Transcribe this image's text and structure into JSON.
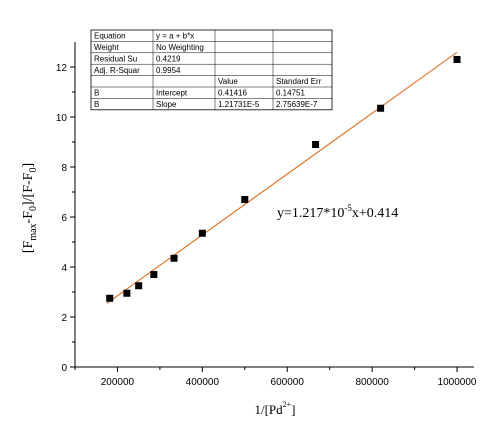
{
  "chart_data": {
    "type": "scatter",
    "x_ticks": [
      "200000",
      "400000",
      "600000",
      "800000",
      "1000000"
    ],
    "y_ticks": [
      "0",
      "2",
      "4",
      "6",
      "8",
      "10",
      "12"
    ],
    "xlim": [
      100000,
      1040000
    ],
    "ylim": [
      0,
      13
    ],
    "grid": false,
    "xlabel": {
      "main": "1/[Pd",
      "sup": "2+",
      "close": "]"
    },
    "ylabel": {
      "p1": "[F",
      "s1": "max",
      "p2": "-F",
      "s2": "0",
      "p3": "]/[F-F",
      "s3": "0",
      "p4": "]"
    },
    "points": [
      {
        "x": 181800,
        "y": 2.75
      },
      {
        "x": 222200,
        "y": 2.95
      },
      {
        "x": 250000,
        "y": 3.25
      },
      {
        "x": 285700,
        "y": 3.7
      },
      {
        "x": 333300,
        "y": 4.35
      },
      {
        "x": 400000,
        "y": 5.35
      },
      {
        "x": 500000,
        "y": 6.7
      },
      {
        "x": 666700,
        "y": 8.9
      },
      {
        "x": 820000,
        "y": 10.35
      },
      {
        "x": 1000000,
        "y": 12.3
      }
    ],
    "fit_line": {
      "intercept": 0.41416,
      "slope": 1.21731e-05,
      "x_range": [
        175000,
        1000000
      ],
      "color": "#e0762a"
    },
    "annotation": {
      "prefix": "y=1.217*10",
      "sup": "-5",
      "suffix": "x+0.414"
    },
    "marker_color": "#000000"
  },
  "fit_table": {
    "rows": [
      [
        "Equation",
        "y = a + b*x",
        "",
        ""
      ],
      [
        "Weight",
        "No Weighting",
        "",
        ""
      ],
      [
        "Residual Su",
        "0.4219",
        "",
        ""
      ],
      [
        "Adj. R-Squar",
        "0.9954",
        "",
        ""
      ],
      [
        "",
        "",
        "Value",
        "Standard Err"
      ],
      [
        "B",
        "Intercept",
        "0.41416",
        "0.14751"
      ],
      [
        "B",
        "Slope",
        "1.21731E-5",
        "2.75639E-7"
      ]
    ]
  }
}
